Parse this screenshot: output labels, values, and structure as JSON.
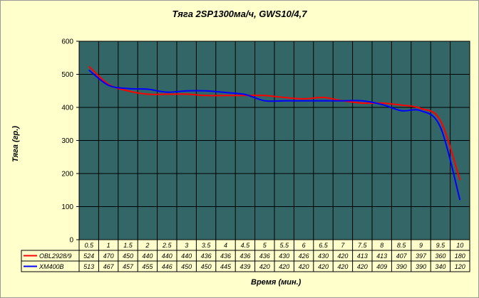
{
  "chart_data": {
    "type": "line",
    "title": "Тяга 2SP1300ма/ч, GWS10/4,7",
    "xlabel": "Время (мин.)",
    "ylabel": "Тяга (гр.)",
    "ylim": [
      0,
      600
    ],
    "yticks": [
      "0",
      "100",
      "200",
      "300",
      "400",
      "500",
      "600"
    ],
    "categories": [
      "0.5",
      "1",
      "1.5",
      "2",
      "2.5",
      "3",
      "3.5",
      "4",
      "4.5",
      "5",
      "5.5",
      "6",
      "6.5",
      "7",
      "7.5",
      "8",
      "8.5",
      "9",
      "9.5",
      "10"
    ],
    "grid": true,
    "legend": "data-table",
    "series": [
      {
        "name": "OBL2928/9",
        "color": "#ff0000",
        "values": [
          524,
          470,
          450,
          440,
          440,
          440,
          436,
          436,
          436,
          436,
          430,
          426,
          430,
          420,
          413,
          413,
          407,
          397,
          360,
          180
        ]
      },
      {
        "name": "XM400B",
        "color": "#0000ff",
        "values": [
          513,
          467,
          457,
          455,
          446,
          450,
          450,
          445,
          439,
          420,
          420,
          420,
          420,
          420,
          420,
          409,
          390,
          390,
          340,
          120
        ]
      }
    ]
  },
  "colors": {
    "background": "#ffffcc",
    "plot_area": "#336666"
  }
}
